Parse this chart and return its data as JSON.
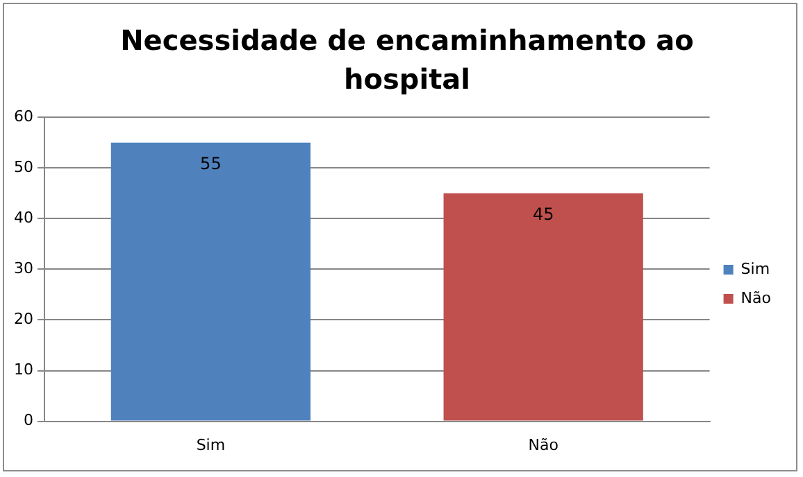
{
  "chart_data": {
    "type": "bar",
    "title": "Necessidade de encaminhamento ao hospital",
    "categories": [
      "Sim",
      "Não"
    ],
    "series": [
      {
        "name": "Sim",
        "color": "#4f81bd",
        "values": [
          55,
          null
        ]
      },
      {
        "name": "Não",
        "color": "#c0504d",
        "values": [
          null,
          45
        ]
      }
    ],
    "ylim": [
      0,
      60
    ],
    "yticks": [
      0,
      10,
      20,
      30,
      40,
      50,
      60
    ],
    "grid": "y",
    "legend": "right",
    "data_labels": true
  }
}
